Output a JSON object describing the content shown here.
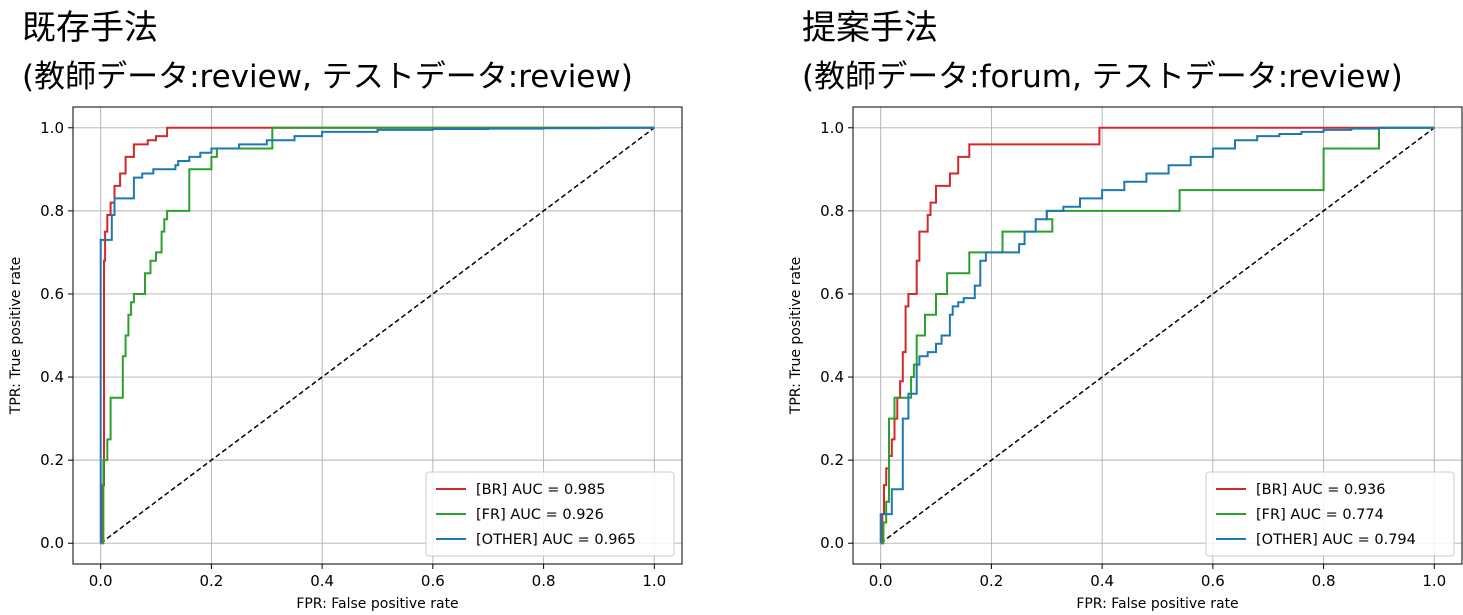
{
  "chart_data": [
    {
      "type": "line",
      "title": "既存手法",
      "subtitle": "(教師データ:review, テストデータ:review)",
      "xlabel": "FPR: False positive rate",
      "ylabel": "TPR: True positive rate",
      "xlim": [
        -0.05,
        1.05
      ],
      "ylim": [
        -0.05,
        1.05
      ],
      "xticks": [
        "0.0",
        "0.2",
        "0.4",
        "0.6",
        "0.8",
        "1.0"
      ],
      "yticks": [
        "0.0",
        "0.2",
        "0.4",
        "0.6",
        "0.8",
        "1.0"
      ],
      "grid": true,
      "legend_position": "lower-right",
      "diagonal": true,
      "series": [
        {
          "name": "[BR] AUC = 0.985",
          "color": "#d62728",
          "x": [
            0,
            0.003,
            0.003,
            0.006,
            0.006,
            0.008,
            0.008,
            0.012,
            0.012,
            0.018,
            0.018,
            0.025,
            0.025,
            0.035,
            0.035,
            0.045,
            0.045,
            0.06,
            0.06,
            0.07,
            0.07,
            0.085,
            0.085,
            0.1,
            0.1,
            0.12,
            0.12,
            1.0
          ],
          "y": [
            0,
            0,
            0.14,
            0.14,
            0.68,
            0.68,
            0.75,
            0.75,
            0.79,
            0.79,
            0.82,
            0.82,
            0.86,
            0.86,
            0.89,
            0.89,
            0.93,
            0.93,
            0.96,
            0.96,
            0.96,
            0.96,
            0.97,
            0.97,
            0.98,
            0.98,
            1.0,
            1.0
          ]
        },
        {
          "name": "[FR] AUC = 0.926",
          "color": "#2ca02c",
          "x": [
            0,
            0.005,
            0.005,
            0.012,
            0.012,
            0.018,
            0.018,
            0.025,
            0.025,
            0.04,
            0.04,
            0.045,
            0.045,
            0.05,
            0.05,
            0.055,
            0.055,
            0.06,
            0.06,
            0.065,
            0.065,
            0.07,
            0.07,
            0.08,
            0.08,
            0.09,
            0.09,
            0.1,
            0.1,
            0.11,
            0.11,
            0.115,
            0.115,
            0.12,
            0.12,
            0.16,
            0.16,
            0.2,
            0.2,
            0.21,
            0.21,
            0.22,
            0.22,
            0.23,
            0.23,
            0.31,
            0.31,
            1.0
          ],
          "y": [
            0,
            0,
            0.2,
            0.2,
            0.25,
            0.25,
            0.35,
            0.35,
            0.35,
            0.35,
            0.45,
            0.45,
            0.5,
            0.5,
            0.55,
            0.55,
            0.58,
            0.58,
            0.6,
            0.6,
            0.6,
            0.6,
            0.6,
            0.6,
            0.65,
            0.65,
            0.68,
            0.68,
            0.7,
            0.7,
            0.75,
            0.75,
            0.78,
            0.78,
            0.8,
            0.8,
            0.9,
            0.9,
            0.93,
            0.93,
            0.95,
            0.95,
            0.95,
            0.95,
            0.95,
            0.95,
            1.0,
            1.0
          ]
        },
        {
          "name": "[OTHER] AUC = 0.965",
          "color": "#1f77b4",
          "x": [
            0,
            0.0,
            0.0,
            0.02,
            0.02,
            0.025,
            0.025,
            0.06,
            0.06,
            0.075,
            0.075,
            0.095,
            0.095,
            0.115,
            0.115,
            0.135,
            0.135,
            0.14,
            0.14,
            0.16,
            0.16,
            0.18,
            0.18,
            0.2,
            0.2,
            0.25,
            0.25,
            0.3,
            0.3,
            0.35,
            0.35,
            0.4,
            0.4,
            0.5,
            0.5,
            0.6,
            0.6,
            0.7,
            0.7,
            0.8,
            0.8,
            0.9,
            0.9,
            1.0
          ],
          "y": [
            0,
            0,
            0.73,
            0.73,
            0.79,
            0.79,
            0.83,
            0.83,
            0.88,
            0.88,
            0.89,
            0.89,
            0.9,
            0.9,
            0.9,
            0.9,
            0.91,
            0.91,
            0.92,
            0.92,
            0.93,
            0.93,
            0.94,
            0.94,
            0.95,
            0.95,
            0.96,
            0.96,
            0.97,
            0.97,
            0.98,
            0.98,
            0.99,
            0.99,
            0.995,
            0.995,
            0.997,
            0.997,
            0.998,
            0.998,
            0.999,
            0.999,
            1.0,
            1.0
          ]
        }
      ]
    },
    {
      "type": "line",
      "title": "提案手法",
      "subtitle": "(教師データ:forum, テストデータ:review)",
      "xlabel": "FPR: False positive rate",
      "ylabel": "TPR: True positive rate",
      "xlim": [
        -0.05,
        1.05
      ],
      "ylim": [
        -0.05,
        1.05
      ],
      "xticks": [
        "0.0",
        "0.2",
        "0.4",
        "0.6",
        "0.8",
        "1.0"
      ],
      "yticks": [
        "0.0",
        "0.2",
        "0.4",
        "0.6",
        "0.8",
        "1.0"
      ],
      "grid": true,
      "legend_position": "lower-right",
      "diagonal": true,
      "series": [
        {
          "name": "[BR] AUC = 0.936",
          "color": "#d62728",
          "x": [
            0,
            0.003,
            0.003,
            0.006,
            0.006,
            0.01,
            0.01,
            0.015,
            0.015,
            0.02,
            0.02,
            0.025,
            0.025,
            0.03,
            0.03,
            0.035,
            0.035,
            0.04,
            0.04,
            0.045,
            0.045,
            0.05,
            0.05,
            0.055,
            0.055,
            0.065,
            0.065,
            0.07,
            0.07,
            0.08,
            0.08,
            0.085,
            0.085,
            0.09,
            0.09,
            0.1,
            0.1,
            0.115,
            0.115,
            0.125,
            0.125,
            0.14,
            0.14,
            0.15,
            0.15,
            0.16,
            0.16,
            0.395,
            0.395,
            1.0
          ],
          "y": [
            0,
            0,
            0.07,
            0.07,
            0.14,
            0.14,
            0.18,
            0.18,
            0.21,
            0.21,
            0.25,
            0.25,
            0.3,
            0.3,
            0.35,
            0.35,
            0.39,
            0.39,
            0.46,
            0.46,
            0.57,
            0.57,
            0.6,
            0.6,
            0.6,
            0.6,
            0.68,
            0.68,
            0.75,
            0.75,
            0.75,
            0.75,
            0.79,
            0.79,
            0.82,
            0.82,
            0.86,
            0.86,
            0.86,
            0.86,
            0.89,
            0.89,
            0.93,
            0.93,
            0.93,
            0.93,
            0.96,
            0.96,
            1.0,
            1.0
          ]
        },
        {
          "name": "[FR] AUC = 0.774",
          "color": "#2ca02c",
          "x": [
            0,
            0.005,
            0.005,
            0.01,
            0.01,
            0.015,
            0.015,
            0.025,
            0.025,
            0.035,
            0.035,
            0.055,
            0.055,
            0.06,
            0.06,
            0.065,
            0.065,
            0.08,
            0.08,
            0.1,
            0.1,
            0.12,
            0.12,
            0.135,
            0.135,
            0.16,
            0.16,
            0.19,
            0.19,
            0.22,
            0.22,
            0.31,
            0.31,
            0.3,
            0.3,
            0.36,
            0.36,
            0.54,
            0.54,
            0.8,
            0.8,
            0.9,
            0.9,
            1.0
          ],
          "y": [
            0,
            0,
            0.05,
            0.05,
            0.1,
            0.1,
            0.3,
            0.3,
            0.35,
            0.35,
            0.35,
            0.35,
            0.4,
            0.4,
            0.43,
            0.43,
            0.5,
            0.5,
            0.55,
            0.55,
            0.6,
            0.6,
            0.65,
            0.65,
            0.65,
            0.65,
            0.7,
            0.7,
            0.7,
            0.7,
            0.75,
            0.75,
            0.78,
            0.78,
            0.8,
            0.8,
            0.8,
            0.8,
            0.85,
            0.85,
            0.95,
            0.95,
            1.0,
            1.0
          ]
        },
        {
          "name": "[OTHER] AUC = 0.794",
          "color": "#1f77b4",
          "x": [
            0,
            0.0,
            0.0,
            0.02,
            0.02,
            0.04,
            0.04,
            0.05,
            0.05,
            0.065,
            0.065,
            0.07,
            0.07,
            0.085,
            0.085,
            0.1,
            0.1,
            0.11,
            0.11,
            0.125,
            0.125,
            0.13,
            0.13,
            0.14,
            0.14,
            0.15,
            0.15,
            0.17,
            0.17,
            0.18,
            0.18,
            0.19,
            0.19,
            0.25,
            0.25,
            0.26,
            0.26,
            0.28,
            0.28,
            0.3,
            0.3,
            0.33,
            0.33,
            0.36,
            0.36,
            0.4,
            0.4,
            0.44,
            0.44,
            0.48,
            0.48,
            0.52,
            0.52,
            0.56,
            0.56,
            0.6,
            0.6,
            0.64,
            0.64,
            0.68,
            0.68,
            0.72,
            0.72,
            0.76,
            0.76,
            0.8,
            0.8,
            0.85,
            0.85,
            0.9,
            0.9,
            0.95,
            0.95,
            1.0
          ],
          "y": [
            0,
            0,
            0.07,
            0.07,
            0.13,
            0.13,
            0.3,
            0.3,
            0.36,
            0.36,
            0.43,
            0.43,
            0.45,
            0.45,
            0.46,
            0.46,
            0.48,
            0.48,
            0.5,
            0.5,
            0.55,
            0.55,
            0.57,
            0.57,
            0.58,
            0.58,
            0.59,
            0.59,
            0.62,
            0.62,
            0.68,
            0.68,
            0.7,
            0.7,
            0.72,
            0.72,
            0.75,
            0.75,
            0.78,
            0.78,
            0.8,
            0.8,
            0.81,
            0.81,
            0.83,
            0.83,
            0.85,
            0.85,
            0.87,
            0.87,
            0.89,
            0.89,
            0.91,
            0.91,
            0.93,
            0.93,
            0.95,
            0.95,
            0.97,
            0.97,
            0.98,
            0.98,
            0.985,
            0.985,
            0.99,
            0.99,
            0.995,
            0.995,
            0.998,
            0.998,
            1.0,
            1.0,
            1.0,
            1.0
          ]
        }
      ]
    }
  ]
}
